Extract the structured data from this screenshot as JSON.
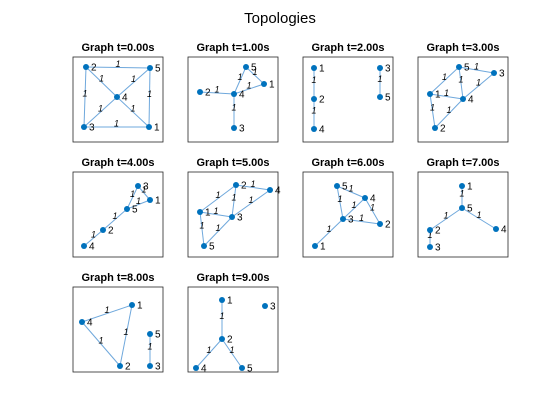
{
  "title": "Topologies",
  "graphs": [
    {
      "title": "Graph t=0.00s",
      "nodes": [
        "1",
        "2",
        "3",
        "4",
        "5"
      ],
      "edges": [
        {
          "from": 1,
          "to": 4,
          "label": "1"
        },
        {
          "from": 1,
          "to": 2,
          "label": "1"
        },
        {
          "from": 1,
          "to": 3,
          "label": "1"
        },
        {
          "from": 4,
          "to": 3,
          "label": "1"
        },
        {
          "from": 4,
          "to": 0,
          "label": "1"
        },
        {
          "from": 2,
          "to": 3,
          "label": "1"
        },
        {
          "from": 2,
          "to": 0,
          "label": "1"
        },
        {
          "from": 3,
          "to": 0,
          "label": "1"
        }
      ]
    },
    {
      "title": "Graph t=1.00s",
      "nodes": [
        "1",
        "2",
        "3",
        "4",
        "5"
      ],
      "edges": [
        {
          "from": 4,
          "to": 0,
          "label": "1"
        },
        {
          "from": 4,
          "to": 3,
          "label": "1"
        },
        {
          "from": 3,
          "to": 0,
          "label": "1"
        },
        {
          "from": 1,
          "to": 3,
          "label": "1"
        },
        {
          "from": 3,
          "to": 2,
          "label": "1"
        }
      ]
    },
    {
      "title": "Graph t=2.00s",
      "nodes": [
        "1",
        "2",
        "3",
        "4",
        "5"
      ],
      "edges": [
        {
          "from": 0,
          "to": 1,
          "label": "1"
        },
        {
          "from": 1,
          "to": 3,
          "label": "1"
        },
        {
          "from": 2,
          "to": 4,
          "label": "1"
        }
      ]
    },
    {
      "title": "Graph t=3.00s",
      "nodes": [
        "1",
        "2",
        "3",
        "4",
        "5"
      ],
      "edges": [
        {
          "from": 4,
          "to": 2,
          "label": "1"
        },
        {
          "from": 4,
          "to": 0,
          "label": "1"
        },
        {
          "from": 4,
          "to": 3,
          "label": "1"
        },
        {
          "from": 2,
          "to": 3,
          "label": "1"
        },
        {
          "from": 0,
          "to": 3,
          "label": "1"
        },
        {
          "from": 0,
          "to": 1,
          "label": "1"
        },
        {
          "from": 1,
          "to": 3,
          "label": "1"
        }
      ]
    },
    {
      "title": "Graph t=4.00s",
      "nodes": [
        "1",
        "2",
        "3",
        "4",
        "5"
      ],
      "edges": [
        {
          "from": 2,
          "to": 0,
          "label": "1"
        },
        {
          "from": 2,
          "to": 4,
          "label": "1"
        },
        {
          "from": 0,
          "to": 4,
          "label": "1"
        },
        {
          "from": 4,
          "to": 1,
          "label": "1"
        },
        {
          "from": 1,
          "to": 3,
          "label": "1"
        }
      ]
    },
    {
      "title": "Graph t=5.00s",
      "nodes": [
        "1",
        "2",
        "3",
        "4",
        "5"
      ],
      "edges": [
        {
          "from": 1,
          "to": 3,
          "label": "1"
        },
        {
          "from": 1,
          "to": 0,
          "label": "1"
        },
        {
          "from": 1,
          "to": 2,
          "label": "1"
        },
        {
          "from": 3,
          "to": 2,
          "label": "1"
        },
        {
          "from": 0,
          "to": 2,
          "label": "1"
        },
        {
          "from": 0,
          "to": 4,
          "label": "1"
        },
        {
          "from": 2,
          "to": 4,
          "label": "1"
        }
      ]
    },
    {
      "title": "Graph t=6.00s",
      "nodes": [
        "1",
        "2",
        "3",
        "4",
        "5"
      ],
      "edges": [
        {
          "from": 4,
          "to": 3,
          "label": "1"
        },
        {
          "from": 4,
          "to": 2,
          "label": "1"
        },
        {
          "from": 3,
          "to": 2,
          "label": "1"
        },
        {
          "from": 3,
          "to": 1,
          "label": "1"
        },
        {
          "from": 2,
          "to": 1,
          "label": "1"
        },
        {
          "from": 2,
          "to": 0,
          "label": "1"
        }
      ]
    },
    {
      "title": "Graph t=7.00s",
      "nodes": [
        "1",
        "2",
        "3",
        "4",
        "5"
      ],
      "edges": [
        {
          "from": 0,
          "to": 4,
          "label": "1"
        },
        {
          "from": 4,
          "to": 1,
          "label": "1"
        },
        {
          "from": 4,
          "to": 3,
          "label": "1"
        },
        {
          "from": 1,
          "to": 2,
          "label": "1"
        }
      ]
    },
    {
      "title": "Graph t=8.00s",
      "nodes": [
        "1",
        "2",
        "3",
        "4",
        "5"
      ],
      "edges": [
        {
          "from": 0,
          "to": 3,
          "label": "1"
        },
        {
          "from": 0,
          "to": 1,
          "label": "1"
        },
        {
          "from": 3,
          "to": 1,
          "label": "1"
        },
        {
          "from": 4,
          "to": 2,
          "label": "1"
        }
      ]
    },
    {
      "title": "Graph t=9.00s",
      "nodes": [
        "1",
        "2",
        "3",
        "4",
        "5"
      ],
      "edges": [
        {
          "from": 0,
          "to": 1,
          "label": "1"
        },
        {
          "from": 1,
          "to": 3,
          "label": "1"
        },
        {
          "from": 1,
          "to": 4,
          "label": "1"
        }
      ]
    }
  ]
}
